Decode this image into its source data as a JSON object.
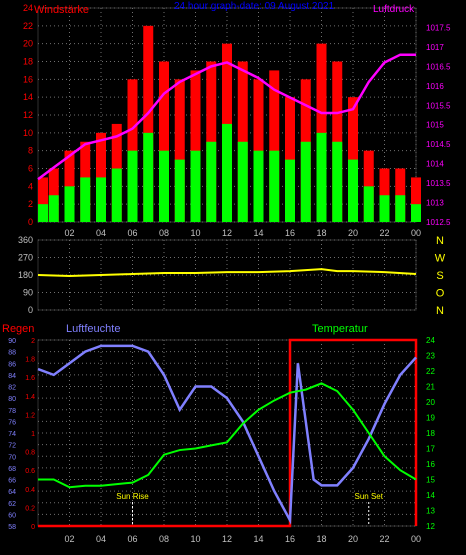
{
  "chart_data": [
    {
      "type": "bar+line",
      "title": "24 hour graph-date: 09 August 2021",
      "left_axis_label": "Windstärke",
      "right_axis_label": "Luftdruck",
      "x_ticks": [
        "02",
        "04",
        "06",
        "08",
        "10",
        "12",
        "14",
        "16",
        "18",
        "20",
        "22",
        "00"
      ],
      "ylim_left": [
        0,
        24
      ],
      "y_ticks_left": [
        "0",
        "2",
        "4",
        "6",
        "8",
        "10",
        "12",
        "14",
        "16",
        "18",
        "20",
        "22",
        "24"
      ],
      "ylim_right": [
        1012.5,
        1018
      ],
      "y_ticks_right": [
        "1012.5",
        "1013",
        "1013.5",
        "1014",
        "1014.5",
        "1015",
        "1015.5",
        "1016",
        "1016.5",
        "1017",
        "1017.5"
      ],
      "series": [
        {
          "role": "wind-gust",
          "color": "#ff0000",
          "x": [
            0,
            1,
            2,
            3,
            4,
            5,
            6,
            7,
            8,
            9,
            10,
            11,
            12,
            13,
            14,
            15,
            16,
            17,
            18,
            19,
            20,
            21,
            22,
            23,
            24
          ],
          "values": [
            5,
            6,
            8,
            9,
            10,
            11,
            16,
            22,
            18,
            16,
            17,
            18,
            20,
            18,
            16,
            17,
            14,
            16,
            20,
            18,
            14,
            8,
            6,
            6,
            5
          ]
        },
        {
          "role": "wind-mean",
          "color": "#00ff00",
          "x": [
            0,
            1,
            2,
            3,
            4,
            5,
            6,
            7,
            8,
            9,
            10,
            11,
            12,
            13,
            14,
            15,
            16,
            17,
            18,
            19,
            20,
            21,
            22,
            23,
            24
          ],
          "values": [
            2,
            3,
            4,
            5,
            5,
            6,
            8,
            10,
            8,
            7,
            8,
            9,
            11,
            9,
            8,
            8,
            7,
            9,
            10,
            9,
            7,
            4,
            3,
            3,
            2
          ]
        },
        {
          "role": "pressure",
          "color": "#ff00ff",
          "x": [
            0,
            1,
            2,
            3,
            4,
            5,
            6,
            7,
            8,
            9,
            10,
            11,
            12,
            13,
            14,
            15,
            16,
            17,
            18,
            19,
            20,
            21,
            22,
            23,
            24
          ],
          "values": [
            1013.6,
            1013.9,
            1014.2,
            1014.5,
            1014.6,
            1014.7,
            1014.9,
            1015.3,
            1015.8,
            1016.1,
            1016.3,
            1016.5,
            1016.6,
            1016.4,
            1016.2,
            1015.9,
            1015.7,
            1015.5,
            1015.3,
            1015.3,
            1015.4,
            1016.1,
            1016.6,
            1016.8,
            1016.8
          ]
        }
      ]
    },
    {
      "type": "line",
      "ylim_left": [
        0,
        360
      ],
      "y_ticks_left": [
        "0",
        "90",
        "180",
        "270",
        "360"
      ],
      "right_labels": [
        "N",
        "W",
        "S",
        "O",
        "N"
      ],
      "series": [
        {
          "role": "wind-direction",
          "color": "#ffff00",
          "x": [
            0,
            2,
            4,
            6,
            8,
            10,
            12,
            14,
            16,
            17,
            18,
            19,
            20,
            22,
            24
          ],
          "values": [
            180,
            175,
            180,
            185,
            190,
            190,
            195,
            195,
            200,
            205,
            210,
            200,
            200,
            195,
            185
          ]
        }
      ]
    },
    {
      "type": "line",
      "label_rain": "Regen",
      "label_humidity": "Luftfeuchte",
      "label_temperature": "Temperatur",
      "annotation_sunrise": "Sun Rise",
      "annotation_sunset": "Sun Set",
      "sunrise_hour": 6,
      "sunset_hour": 21,
      "x_ticks": [
        "02",
        "04",
        "06",
        "08",
        "10",
        "12",
        "14",
        "16",
        "18",
        "20",
        "22",
        "00"
      ],
      "ylim_humidity": [
        58,
        90
      ],
      "y_ticks_humidity": [
        "58",
        "60",
        "62",
        "64",
        "66",
        "68",
        "70",
        "72",
        "74",
        "76",
        "78",
        "80",
        "82",
        "84",
        "86",
        "88",
        "90"
      ],
      "ylim_rain": [
        0,
        2
      ],
      "y_ticks_rain": [
        "0",
        "0.2",
        "0.4",
        "0.6",
        "0.8",
        "1",
        "1.2",
        "1.4",
        "1.6",
        "1.8",
        "2"
      ],
      "ylim_temperature": [
        12,
        24
      ],
      "y_ticks_temperature": [
        "12",
        "13",
        "14",
        "15",
        "16",
        "17",
        "18",
        "19",
        "20",
        "21",
        "22",
        "23",
        "24"
      ],
      "series": [
        {
          "role": "humidity",
          "color": "#8080ff",
          "x": [
            0,
            1,
            2,
            3,
            4,
            5,
            6,
            7,
            8,
            9,
            10,
            11,
            12,
            13,
            14,
            15,
            16,
            16.5,
            17,
            17.5,
            18,
            19,
            20,
            21,
            22,
            23,
            24
          ],
          "values": [
            85,
            84,
            86,
            88,
            89,
            89,
            89,
            88,
            84,
            78,
            82,
            82,
            80,
            76,
            70,
            64,
            59,
            86,
            76,
            66,
            65,
            65,
            68,
            73,
            79,
            84,
            87
          ]
        },
        {
          "role": "temperature",
          "color": "#00ff00",
          "x": [
            0,
            1,
            2,
            3,
            4,
            5,
            6,
            7,
            8,
            9,
            10,
            11,
            12,
            13,
            14,
            15,
            16,
            17,
            18,
            19,
            20,
            21,
            22,
            23,
            24
          ],
          "values": [
            15.0,
            15.0,
            14.5,
            14.6,
            14.6,
            14.7,
            14.8,
            15.3,
            16.6,
            16.9,
            17.0,
            17.2,
            17.4,
            18.6,
            19.5,
            20.1,
            20.6,
            20.8,
            21.2,
            20.7,
            19.5,
            18.0,
            16.5,
            15.6,
            15.0
          ]
        },
        {
          "role": "rain",
          "color": "#ff0000",
          "x": [
            0,
            16,
            16,
            24,
            24
          ],
          "values": [
            0,
            0,
            2,
            2,
            0
          ]
        }
      ]
    }
  ]
}
